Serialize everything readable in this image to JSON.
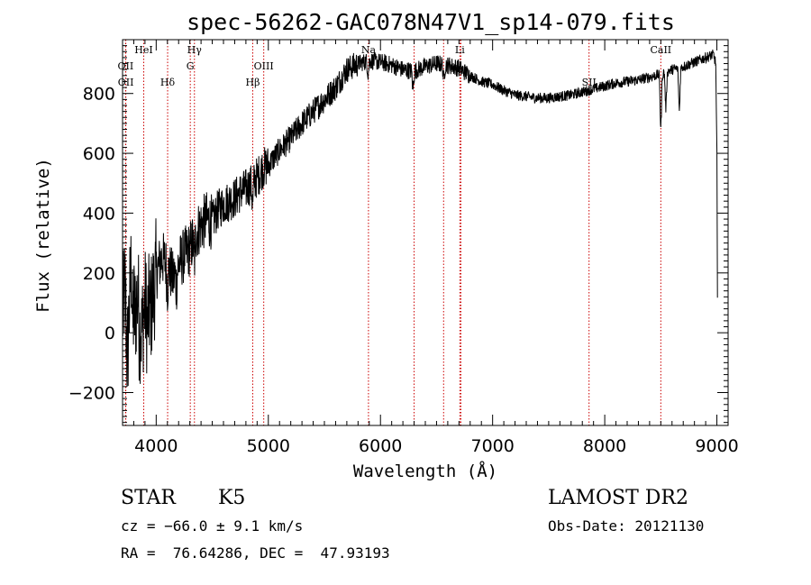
{
  "title": "spec-56262-GAC078N47V1_sp14-079.fits",
  "info": {
    "class_label": "STAR",
    "subclass_label": "K5",
    "redshift_text": "cz = −66.0 ± 9.1 km/s",
    "coords_text": "RA =  76.64286, DEC =  47.93193",
    "survey_text": "LAMOST DR2",
    "obsdate_text": "Obs-Date: 20121130"
  },
  "chart_data": {
    "type": "line",
    "title": "spec-56262-GAC078N47V1_sp14-079.fits",
    "xlabel": "Wavelength (Å)",
    "ylabel": "Flux (relative)",
    "xlim": [
      3700,
      9100
    ],
    "ylim": [
      -310,
      980
    ],
    "xticks": [
      4000,
      5000,
      6000,
      7000,
      8000,
      9000
    ],
    "yticks": [
      -200,
      0,
      200,
      400,
      600,
      800
    ],
    "grid": false,
    "line_color": "#000000",
    "marker_color": "#cc0000",
    "spectrum_anchors": [
      [
        3700,
        50
      ],
      [
        3720,
        150
      ],
      [
        3750,
        0
      ],
      [
        3780,
        250
      ],
      [
        3810,
        50
      ],
      [
        3840,
        150
      ],
      [
        3870,
        0
      ],
      [
        3900,
        100
      ],
      [
        3950,
        70
      ],
      [
        4000,
        200
      ],
      [
        4050,
        250
      ],
      [
        4100,
        230
      ],
      [
        4150,
        180
      ],
      [
        4200,
        230
      ],
      [
        4250,
        260
      ],
      [
        4300,
        280
      ],
      [
        4350,
        330
      ],
      [
        4400,
        360
      ],
      [
        4450,
        380
      ],
      [
        4500,
        370
      ],
      [
        4550,
        410
      ],
      [
        4600,
        430
      ],
      [
        4650,
        440
      ],
      [
        4700,
        450
      ],
      [
        4750,
        470
      ],
      [
        4800,
        480
      ],
      [
        4850,
        500
      ],
      [
        4900,
        520
      ],
      [
        4950,
        550
      ],
      [
        5000,
        560
      ],
      [
        5100,
        610
      ],
      [
        5200,
        650
      ],
      [
        5300,
        700
      ],
      [
        5400,
        740
      ],
      [
        5500,
        780
      ],
      [
        5600,
        820
      ],
      [
        5700,
        880
      ],
      [
        5800,
        900
      ],
      [
        5900,
        910
      ],
      [
        6000,
        905
      ],
      [
        6100,
        895
      ],
      [
        6200,
        880
      ],
      [
        6300,
        875
      ],
      [
        6400,
        890
      ],
      [
        6500,
        900
      ],
      [
        6600,
        895
      ],
      [
        6700,
        885
      ],
      [
        6800,
        860
      ],
      [
        6900,
        840
      ],
      [
        7000,
        830
      ],
      [
        7100,
        810
      ],
      [
        7200,
        795
      ],
      [
        7300,
        790
      ],
      [
        7400,
        785
      ],
      [
        7500,
        785
      ],
      [
        7600,
        790
      ],
      [
        7700,
        795
      ],
      [
        7800,
        805
      ],
      [
        7900,
        815
      ],
      [
        8000,
        825
      ],
      [
        8100,
        835
      ],
      [
        8200,
        840
      ],
      [
        8300,
        845
      ],
      [
        8400,
        855
      ],
      [
        8500,
        865
      ],
      [
        8600,
        880
      ],
      [
        8700,
        890
      ],
      [
        8800,
        905
      ],
      [
        8900,
        920
      ],
      [
        8970,
        930
      ],
      [
        8990,
        900
      ],
      [
        9000,
        600
      ],
      [
        9005,
        100
      ]
    ],
    "absorption_dips": [
      [
        3740,
        -120
      ],
      [
        3790,
        -150
      ],
      [
        3850,
        -100
      ],
      [
        3920,
        -60
      ],
      [
        4100,
        -80
      ],
      [
        4180,
        -50
      ],
      [
        4340,
        -80
      ],
      [
        4860,
        -70
      ],
      [
        5890,
        -40
      ],
      [
        6290,
        -60
      ],
      [
        6565,
        -50
      ],
      [
        8500,
        -180
      ],
      [
        8545,
        -120
      ],
      [
        8665,
        -140
      ]
    ],
    "lines": [
      {
        "label": "OII",
        "wavelength": 3727,
        "row": 2
      },
      {
        "label": "OII",
        "wavelength": 3729,
        "row": 3
      },
      {
        "label": "HeI",
        "wavelength": 3889,
        "row": 0
      },
      {
        "label": "Hδ",
        "wavelength": 4102,
        "row": 3
      },
      {
        "label": "Hγ",
        "wavelength": 4341,
        "row": 0
      },
      {
        "label": "G",
        "wavelength": 4304,
        "row": 2
      },
      {
        "label": "Hβ",
        "wavelength": 4861,
        "row": 3
      },
      {
        "label": "OIII",
        "wavelength": 4959,
        "row": 2
      },
      {
        "label": "Na",
        "wavelength": 5893,
        "row": 0
      },
      {
        "label": "",
        "wavelength": 6300,
        "row": 0
      },
      {
        "label": "",
        "wavelength": 6563,
        "row": 0
      },
      {
        "label": "Li",
        "wavelength": 6708,
        "row": 0
      },
      {
        "label": "",
        "wavelength": 6717,
        "row": 0
      },
      {
        "label": "SII",
        "wavelength": 7860,
        "row": 3
      },
      {
        "label": "CaII",
        "wavelength": 8500,
        "row": 0
      }
    ]
  }
}
